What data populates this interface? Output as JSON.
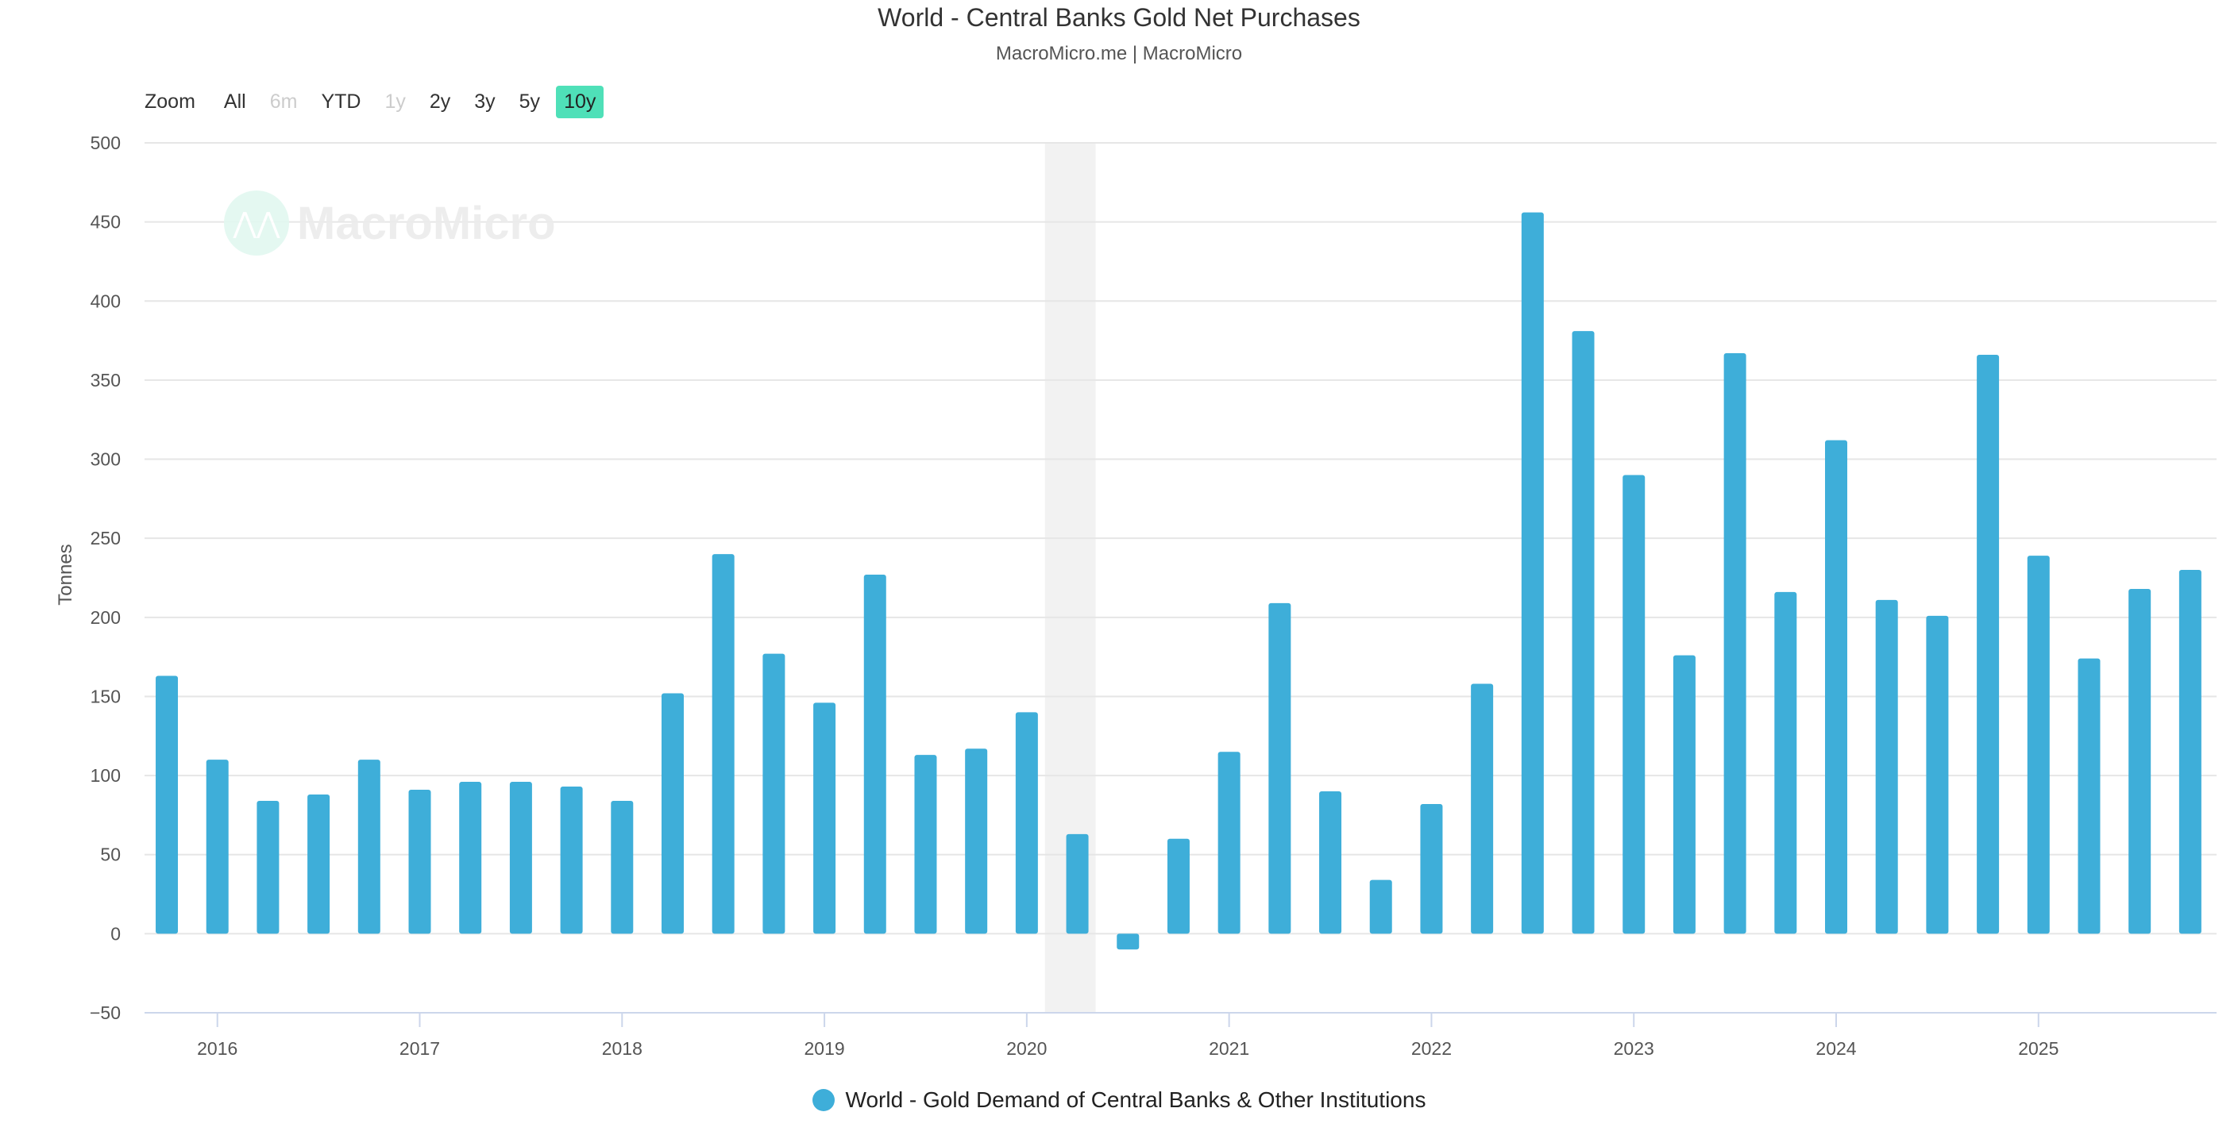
{
  "chart_data": {
    "type": "bar",
    "title": "World - Central Banks Gold Net Purchases",
    "subtitle": "MacroMicro.me | MacroMicro",
    "ylabel": "Tonnes",
    "xlabel": "",
    "ylim": [
      -50,
      500
    ],
    "yticks": [
      -50,
      0,
      50,
      100,
      150,
      200,
      250,
      300,
      350,
      400,
      450,
      500
    ],
    "xlim": [
      2015.64,
      2025.88
    ],
    "xticks": [
      2016,
      2017,
      2018,
      2019,
      2020,
      2021,
      2022,
      2023,
      2024,
      2025
    ],
    "grid": true,
    "legend_placement": "bottom-center",
    "shaded_range": [
      2020.09,
      2020.34
    ],
    "series": [
      {
        "name": "World - Gold Demand of Central Banks & Other Institutions",
        "color": "#3eaed9",
        "x_start": 2015.75,
        "x_step": 0.25,
        "values": [
          163,
          110,
          84,
          88,
          110,
          91,
          96,
          96,
          93,
          84,
          152,
          240,
          177,
          146,
          227,
          113,
          117,
          140,
          63,
          -10,
          60,
          115,
          209,
          90,
          34,
          82,
          158,
          456,
          381,
          290,
          176,
          367,
          216,
          312,
          211,
          201,
          366,
          239,
          174,
          218,
          230
        ]
      }
    ]
  },
  "zoom": {
    "label": "Zoom",
    "buttons": [
      {
        "label": "All",
        "state": "normal"
      },
      {
        "label": "6m",
        "state": "disabled"
      },
      {
        "label": "YTD",
        "state": "normal"
      },
      {
        "label": "1y",
        "state": "disabled"
      },
      {
        "label": "2y",
        "state": "normal"
      },
      {
        "label": "3y",
        "state": "normal"
      },
      {
        "label": "5y",
        "state": "normal"
      },
      {
        "label": "10y",
        "state": "active"
      }
    ]
  },
  "watermark": "MacroMicro"
}
